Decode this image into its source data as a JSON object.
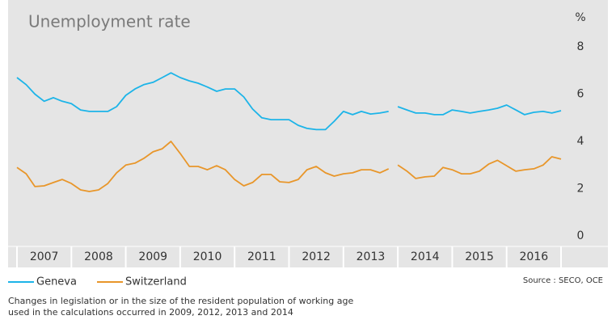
{
  "chart_data": {
    "type": "line",
    "title": "Unemployment rate",
    "y_unit": "%",
    "x": [
      2007.0,
      2007.17,
      2007.33,
      2007.5,
      2007.67,
      2007.83,
      2008.0,
      2008.17,
      2008.33,
      2008.5,
      2008.67,
      2008.83,
      2009.0,
      2009.17,
      2009.33,
      2009.5,
      2009.67,
      2009.83,
      2010.0,
      2010.17,
      2010.33,
      2010.5,
      2010.67,
      2010.83,
      2011.0,
      2011.17,
      2011.33,
      2011.5,
      2011.67,
      2011.83,
      2012.0,
      2012.17,
      2012.33,
      2012.5,
      2012.67,
      2012.83,
      2013.0,
      2013.17,
      2013.33,
      2013.5,
      2013.67,
      2013.83,
      2013.92,
      2014.0,
      2014.17,
      2014.33,
      2014.5,
      2014.67,
      2014.83,
      2015.0,
      2015.17,
      2015.33,
      2015.5,
      2015.67,
      2015.83,
      2016.0,
      2016.17,
      2016.33,
      2016.5,
      2016.67,
      2016.83,
      2017.0
    ],
    "series": [
      {
        "name": "Geneva",
        "color": "#1cb4e8",
        "values": [
          6.7,
          6.4,
          6.0,
          5.7,
          5.85,
          5.7,
          5.6,
          5.33,
          5.27,
          5.27,
          5.27,
          5.47,
          5.95,
          6.22,
          6.4,
          6.5,
          6.7,
          6.9,
          6.7,
          6.56,
          6.46,
          6.3,
          6.12,
          6.22,
          6.22,
          5.88,
          5.37,
          5.0,
          4.92,
          4.92,
          4.92,
          4.68,
          4.55,
          4.5,
          4.5,
          4.85,
          5.27,
          5.13,
          5.27,
          5.16,
          5.2,
          5.27,
          null,
          5.47,
          5.33,
          5.2,
          5.2,
          5.13,
          5.13,
          5.33,
          5.27,
          5.2,
          5.27,
          5.33,
          5.4,
          5.54,
          5.33,
          5.13,
          5.23,
          5.27,
          5.2,
          5.3
        ]
      },
      {
        "name": "Switzerland",
        "color": "#e8962a",
        "values": [
          2.9,
          2.63,
          2.09,
          2.12,
          2.26,
          2.39,
          2.22,
          1.95,
          1.88,
          1.95,
          2.22,
          2.67,
          3.0,
          3.08,
          3.28,
          3.56,
          3.69,
          4.0,
          3.49,
          2.94,
          2.94,
          2.8,
          2.97,
          2.8,
          2.39,
          2.12,
          2.26,
          2.6,
          2.6,
          2.29,
          2.26,
          2.39,
          2.8,
          2.94,
          2.67,
          2.53,
          2.63,
          2.67,
          2.8,
          2.8,
          2.67,
          2.84,
          null,
          3.0,
          2.74,
          2.43,
          2.5,
          2.53,
          2.9,
          2.8,
          2.63,
          2.63,
          2.74,
          3.04,
          3.2,
          2.97,
          2.74,
          2.8,
          2.84,
          3.0,
          3.35,
          3.25
        ]
      }
    ],
    "xlim": [
      2007,
      2017
    ],
    "xticks": [
      {
        "value": 2007.5,
        "label": "2007"
      },
      {
        "value": 2008.5,
        "label": "2008"
      },
      {
        "value": 2009.5,
        "label": "2009"
      },
      {
        "value": 2010.5,
        "label": "2010"
      },
      {
        "value": 2011.5,
        "label": "2011"
      },
      {
        "value": 2012.5,
        "label": "2012"
      },
      {
        "value": 2013.5,
        "label": "2013"
      },
      {
        "value": 2014.5,
        "label": "2014"
      },
      {
        "value": 2015.5,
        "label": "2015"
      },
      {
        "value": 2016.5,
        "label": "2016"
      }
    ],
    "ylim": [
      0,
      8
    ],
    "yticks": [
      0,
      2,
      4,
      6,
      8
    ],
    "source": "Source : SECO, OCE",
    "notes": [
      "Changes in legislation or in the size of the resident population of working age",
      "used in the calculations occurred in 2009, 2012, 2013 and 2014"
    ]
  }
}
